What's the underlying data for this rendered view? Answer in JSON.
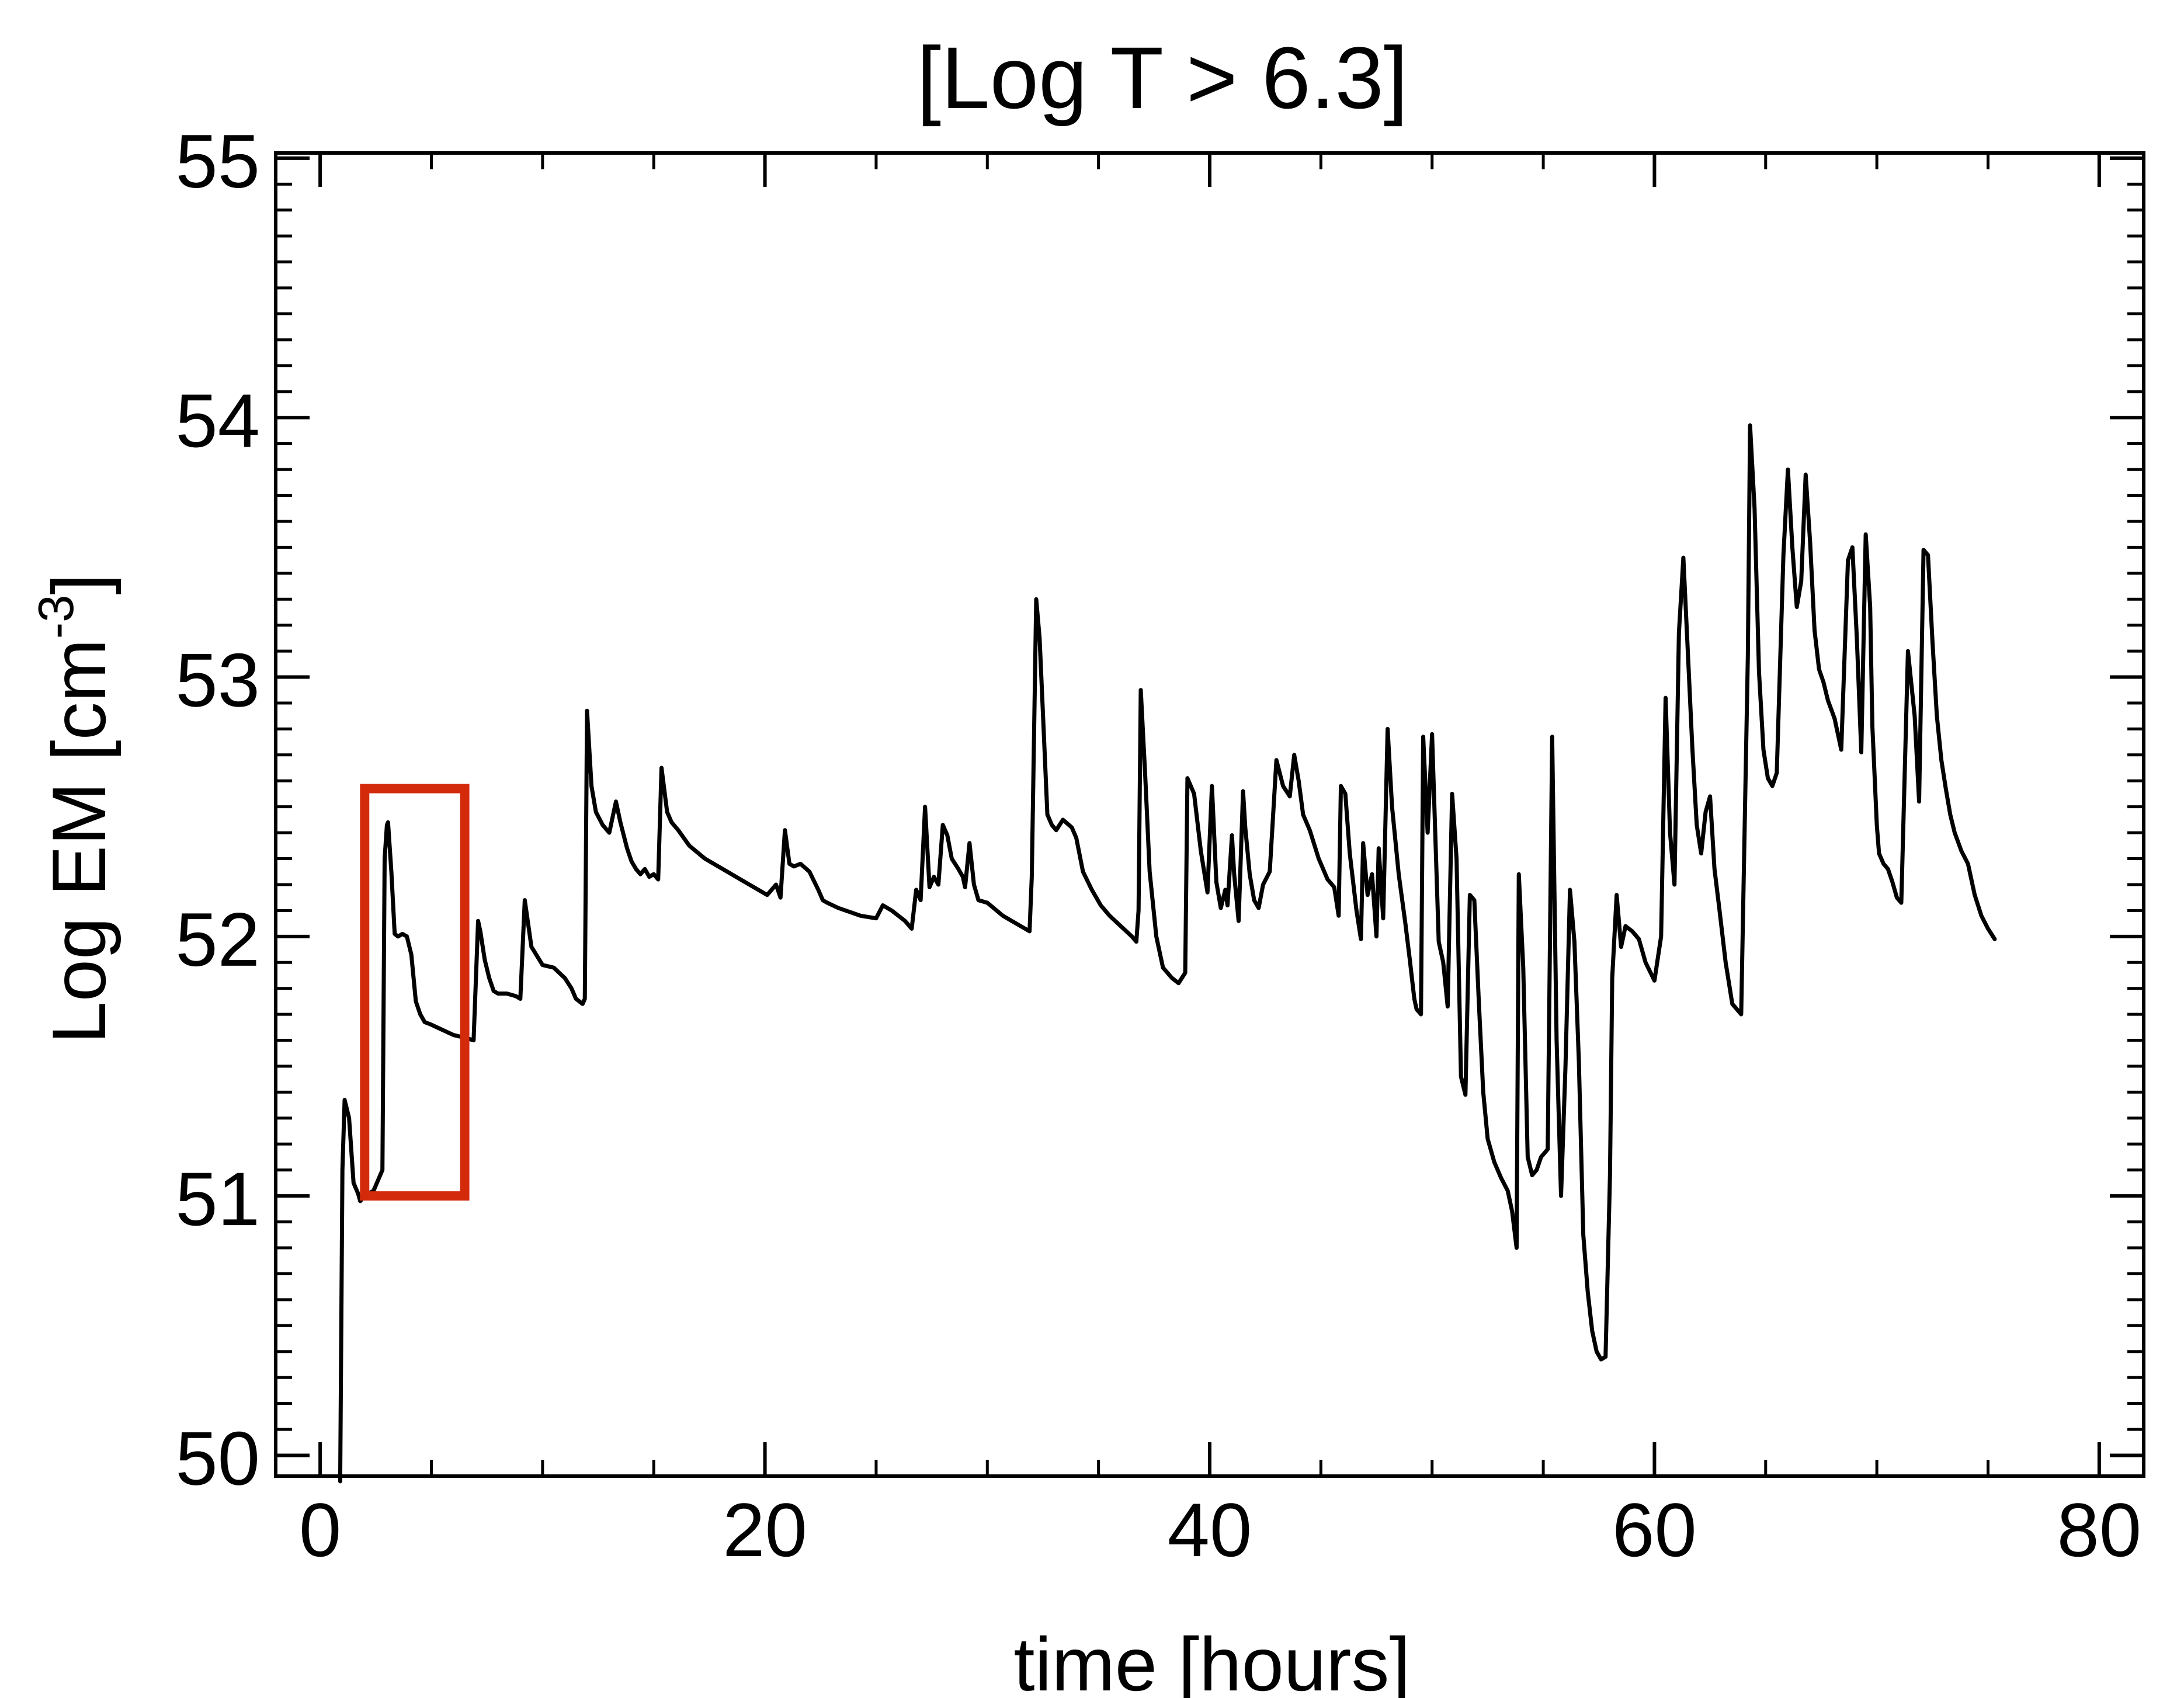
{
  "chart_data": {
    "type": "line",
    "title": "[Log T > 6.3]",
    "xlabel": "time [hours]",
    "ylabel": "Log EM [cm",
    "ylabel_sup": "-3",
    "ylabel_close": "]",
    "xlim": [
      -2,
      82
    ],
    "ylim": [
      49.92,
      55.02
    ],
    "xticks": [
      0,
      20,
      40,
      60,
      80
    ],
    "yticks": [
      50,
      51,
      52,
      53,
      54,
      55
    ],
    "grid": false,
    "line_color": "#000000",
    "highlight": {
      "x": [
        2,
        6.5
      ],
      "y": [
        51.0,
        52.57
      ],
      "color": "#d42a0c"
    },
    "series": [
      {
        "x": [
          0.9,
          1.0,
          1.1,
          1.3,
          1.5,
          1.7,
          1.8,
          2.0,
          2.2,
          2.4,
          2.6,
          2.8,
          2.9,
          3.0,
          3.05,
          3.2,
          3.35,
          3.5,
          3.7,
          3.9,
          4.1,
          4.3,
          4.5,
          4.7,
          5.0,
          5.5,
          6.0,
          6.5,
          6.9,
          7.1,
          7.2,
          7.4,
          7.6,
          7.8,
          8.0,
          8.4,
          8.8,
          9.0,
          9.2,
          9.5,
          10.0,
          10.5,
          11.0,
          11.3,
          11.5,
          11.8,
          11.9,
          12.0,
          12.2,
          12.4,
          12.7,
          13.0,
          13.3,
          13.5,
          13.8,
          14.0,
          14.2,
          14.4,
          14.6,
          14.8,
          15.0,
          15.2,
          15.35,
          15.6,
          15.8,
          16.1,
          16.6,
          17.3,
          18.3,
          19.3,
          20.1,
          20.5,
          20.7,
          20.9,
          21.1,
          21.3,
          21.6,
          22.0,
          22.4,
          22.6,
          22.8,
          23.3,
          24.3,
          25.0,
          25.3,
          25.7,
          26.0,
          26.3,
          26.6,
          26.8,
          27.0,
          27.2,
          27.4,
          27.6,
          27.8,
          28.0,
          28.2,
          28.4,
          28.7,
          28.9,
          29.0,
          29.2,
          29.4,
          29.6,
          30.0,
          30.7,
          31.5,
          31.9,
          32.0,
          32.2,
          32.35,
          32.5,
          32.7,
          32.9,
          33.1,
          33.4,
          33.8,
          34.0,
          34.3,
          34.7,
          35.1,
          35.5,
          36.0,
          36.5,
          36.7,
          36.8,
          36.9,
          37.1,
          37.3,
          37.6,
          37.9,
          38.3,
          38.6,
          38.9,
          39.0,
          39.3,
          39.6,
          39.9,
          40.1,
          40.3,
          40.5,
          40.7,
          40.8,
          41.0,
          41.1,
          41.3,
          41.5,
          41.6,
          41.8,
          42.0,
          42.2,
          42.4,
          42.7,
          43.0,
          43.3,
          43.6,
          43.8,
          44.0,
          44.2,
          44.5,
          44.9,
          45.3,
          45.6,
          45.8,
          45.9,
          46.1,
          46.3,
          46.6,
          46.8,
          46.9,
          47.1,
          47.3,
          47.5,
          47.6,
          47.8,
          48.0,
          48.2,
          48.5,
          48.8,
          49.0,
          49.2,
          49.3,
          49.5,
          49.6,
          49.8,
          50.0,
          50.3,
          50.5,
          50.7,
          50.9,
          51.1,
          51.3,
          51.5,
          51.7,
          51.9,
          52.1,
          52.3,
          52.5,
          52.8,
          53.1,
          53.4,
          53.6,
          53.8,
          53.9,
          54.1,
          54.3,
          54.5,
          54.7,
          54.9,
          55.2,
          55.4,
          55.6,
          55.8,
          56.0,
          56.2,
          56.4,
          56.6,
          56.8,
          57.0,
          57.2,
          57.4,
          57.6,
          57.8,
          58.0,
          58.1,
          58.3,
          58.5,
          58.7,
          59.0,
          59.3,
          59.6,
          60.0,
          60.3,
          60.5,
          60.7,
          60.9,
          61.1,
          61.3,
          61.5,
          61.7,
          61.9,
          62.1,
          62.3,
          62.5,
          62.7,
          62.9,
          63.2,
          63.5,
          63.9,
          64.2,
          64.3,
          64.5,
          64.7,
          64.9,
          65.1,
          65.3,
          65.5,
          65.8,
          66.0,
          66.2,
          66.4,
          66.6,
          66.8,
          67.0,
          67.2,
          67.4,
          67.6,
          67.8,
          68.1,
          68.4,
          68.7,
          68.9,
          69.1,
          69.3,
          69.5,
          69.7,
          69.8,
          70.0,
          70.1,
          70.3,
          70.5,
          70.7,
          70.9,
          71.1,
          71.4,
          71.7,
          71.9,
          72.1,
          72.3,
          72.5,
          72.7,
          72.9,
          73.1,
          73.3,
          73.5,
          73.8,
          74.1,
          74.4,
          74.7,
          75.0,
          75.3
        ],
        "values": [
          49.9,
          51.1,
          51.37,
          51.3,
          51.05,
          51.01,
          50.98,
          51.0,
          51.01,
          51.02,
          51.06,
          51.1,
          52.3,
          52.43,
          52.44,
          52.25,
          52.01,
          52.0,
          52.01,
          52.0,
          51.93,
          51.75,
          51.7,
          51.67,
          51.66,
          51.64,
          51.62,
          51.61,
          51.6,
          52.06,
          52.02,
          51.91,
          51.84,
          51.79,
          51.78,
          51.78,
          51.77,
          51.76,
          52.14,
          51.96,
          51.89,
          51.88,
          51.84,
          51.8,
          51.76,
          51.74,
          51.76,
          52.87,
          52.58,
          52.48,
          52.43,
          52.4,
          52.52,
          52.44,
          52.34,
          52.29,
          52.26,
          52.24,
          52.26,
          52.23,
          52.24,
          52.22,
          52.65,
          52.48,
          52.44,
          52.41,
          52.35,
          52.3,
          52.25,
          52.2,
          52.16,
          52.2,
          52.15,
          52.41,
          52.28,
          52.27,
          52.28,
          52.25,
          52.18,
          52.14,
          52.13,
          52.11,
          52.08,
          52.07,
          52.12,
          52.1,
          52.08,
          52.06,
          52.03,
          52.18,
          52.14,
          52.5,
          52.19,
          52.23,
          52.2,
          52.43,
          52.39,
          52.3,
          52.26,
          52.23,
          52.19,
          52.36,
          52.2,
          52.14,
          52.13,
          52.08,
          52.04,
          52.02,
          52.23,
          53.3,
          53.15,
          52.86,
          52.47,
          52.43,
          52.41,
          52.45,
          52.42,
          52.38,
          52.25,
          52.18,
          52.12,
          52.08,
          52.04,
          52.0,
          51.98,
          52.1,
          52.95,
          52.62,
          52.25,
          52.0,
          51.88,
          51.84,
          51.82,
          51.86,
          52.61,
          52.55,
          52.33,
          52.17,
          52.58,
          52.21,
          52.11,
          52.18,
          52.12,
          52.39,
          52.24,
          52.06,
          52.56,
          52.42,
          52.24,
          52.14,
          52.11,
          52.2,
          52.25,
          52.68,
          52.58,
          52.54,
          52.7,
          52.6,
          52.47,
          52.41,
          52.3,
          52.22,
          52.19,
          52.08,
          52.58,
          52.55,
          52.32,
          52.1,
          51.99,
          52.36,
          52.16,
          52.24,
          52.0,
          52.34,
          52.07,
          52.8,
          52.5,
          52.24,
          52.05,
          51.91,
          51.76,
          51.72,
          51.7,
          52.77,
          52.4,
          52.78,
          51.98,
          51.9,
          51.73,
          52.55,
          52.3,
          51.46,
          51.39,
          52.16,
          52.14,
          51.75,
          51.4,
          51.22,
          51.13,
          51.07,
          51.02,
          50.94,
          50.8,
          52.24,
          51.88,
          51.15,
          51.08,
          51.1,
          51.15,
          51.18,
          52.77,
          51.6,
          51.0,
          51.5,
          52.18,
          51.98,
          51.52,
          50.85,
          50.63,
          50.48,
          50.4,
          50.37,
          50.38,
          51.08,
          51.84,
          52.16,
          51.96,
          52.04,
          52.02,
          51.99,
          51.9,
          51.83,
          52.0,
          52.92,
          52.4,
          52.2,
          53.17,
          53.46,
          53.1,
          52.73,
          52.43,
          52.32,
          52.48,
          52.54,
          52.26,
          52.12,
          51.9,
          51.74,
          51.7,
          53.08,
          53.97,
          53.65,
          53.02,
          52.72,
          52.61,
          52.58,
          52.63,
          53.47,
          53.8,
          53.5,
          53.27,
          53.37,
          53.78,
          53.52,
          53.18,
          53.03,
          52.98,
          52.91,
          52.84,
          52.72,
          53.45,
          53.5,
          53.15,
          52.71,
          53.55,
          53.27,
          52.81,
          52.43,
          52.32,
          52.28,
          52.26,
          52.21,
          52.15,
          52.13,
          53.1,
          52.85,
          52.52,
          53.49,
          53.47,
          53.14,
          52.85,
          52.68,
          52.57,
          52.47,
          52.4,
          52.33,
          52.28,
          52.16,
          52.08,
          52.03,
          51.99
        ]
      }
    ]
  }
}
